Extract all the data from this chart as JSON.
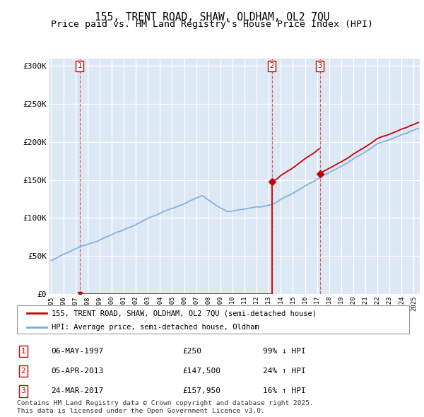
{
  "title": "155, TRENT ROAD, SHAW, OLDHAM, OL2 7QU",
  "subtitle": "Price paid vs. HM Land Registry's House Price Index (HPI)",
  "ylabel_ticks": [
    "£0",
    "£50K",
    "£100K",
    "£150K",
    "£200K",
    "£250K",
    "£300K"
  ],
  "ytick_values": [
    0,
    50000,
    100000,
    150000,
    200000,
    250000,
    300000
  ],
  "ylim": [
    0,
    310000
  ],
  "xlim_start": 1994.8,
  "xlim_end": 2025.5,
  "transaction1_date": 1997.35,
  "transaction1_price": 250,
  "transaction2_date": 2013.26,
  "transaction2_price": 147500,
  "transaction3_date": 2017.23,
  "transaction3_price": 157950,
  "hpi_color": "#7aaadd",
  "price_color": "#cc0000",
  "bg_color": "#dde8f5",
  "grid_color": "#ffffff",
  "legend_label_price": "155, TRENT ROAD, SHAW, OLDHAM, OL2 7QU (semi-detached house)",
  "legend_label_hpi": "HPI: Average price, semi-detached house, Oldham",
  "table_rows": [
    [
      "1",
      "06-MAY-1997",
      "£250",
      "99% ↓ HPI"
    ],
    [
      "2",
      "05-APR-2013",
      "£147,500",
      "24% ↑ HPI"
    ],
    [
      "3",
      "24-MAR-2017",
      "£157,950",
      "16% ↑ HPI"
    ]
  ],
  "footer_text": "Contains HM Land Registry data © Crown copyright and database right 2025.\nThis data is licensed under the Open Government Licence v3.0.",
  "title_fontsize": 10.5,
  "subtitle_fontsize": 9.5
}
